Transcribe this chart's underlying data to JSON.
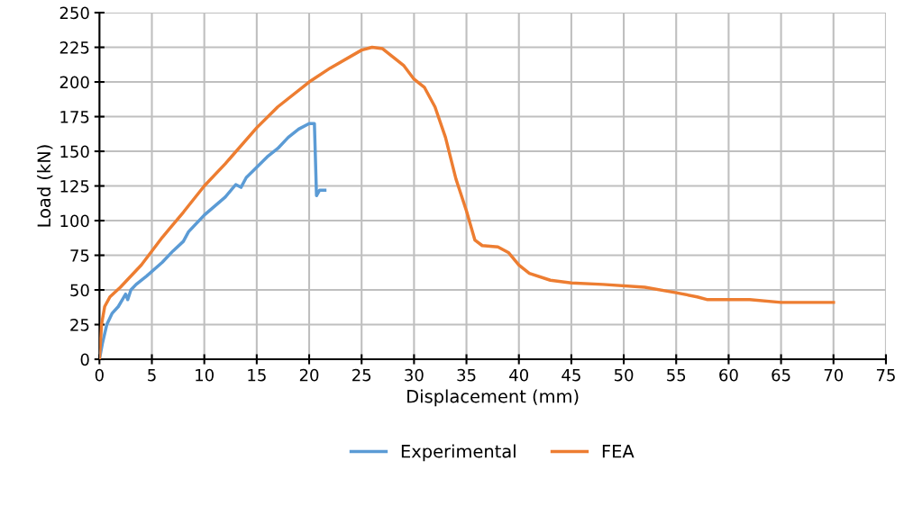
{
  "chart_data": {
    "type": "line",
    "xlabel": "Displacement (mm)",
    "ylabel": "Load (kN)",
    "xlim": [
      0,
      75
    ],
    "xticks": [
      0,
      5,
      10,
      15,
      20,
      25,
      30,
      35,
      40,
      45,
      50,
      55,
      60,
      65,
      70,
      75
    ],
    "ylim": [
      0,
      250
    ],
    "yticks": [
      0,
      25,
      50,
      75,
      100,
      125,
      150,
      175,
      200,
      225,
      250
    ],
    "grid": true,
    "legend": "bottom",
    "marker": "none",
    "line_style": "solid",
    "series": [
      {
        "name": "Experimental",
        "color": "#5b9bd5",
        "x": [
          0,
          0.3,
          0.7,
          1.2,
          1.8,
          2.5,
          2.7,
          3,
          3.5,
          4.5,
          6,
          7,
          8,
          8.5,
          10,
          12,
          13,
          13.5,
          14,
          16,
          17,
          18,
          19,
          20,
          20.5,
          20.7,
          21,
          21.5
        ],
        "values": [
          0,
          12,
          25,
          33,
          38,
          47,
          43,
          50,
          54,
          60,
          70,
          78,
          85,
          92,
          104,
          117,
          126,
          124,
          131,
          146,
          152,
          160,
          166,
          170,
          170,
          118,
          122,
          122
        ]
      },
      {
        "name": "FEA",
        "color": "#ed7d31",
        "x": [
          0,
          0.2,
          0.5,
          1,
          2,
          4,
          6,
          8,
          10,
          12,
          15,
          17,
          20,
          22,
          25,
          26,
          27,
          28,
          29,
          30,
          31,
          32,
          33,
          34,
          35,
          35.8,
          36.5,
          38,
          39,
          40,
          41,
          43,
          45,
          48,
          52,
          55,
          57,
          58,
          62,
          65,
          68,
          70
        ],
        "values": [
          0,
          25,
          38,
          45,
          52,
          68,
          88,
          106,
          125,
          141,
          167,
          182,
          200,
          210,
          223,
          225,
          224,
          218,
          212,
          202,
          196,
          182,
          160,
          130,
          107,
          86,
          82,
          81,
          77,
          68,
          62,
          57,
          55,
          54,
          52,
          48,
          45,
          43,
          43,
          41,
          41,
          41
        ]
      }
    ]
  }
}
